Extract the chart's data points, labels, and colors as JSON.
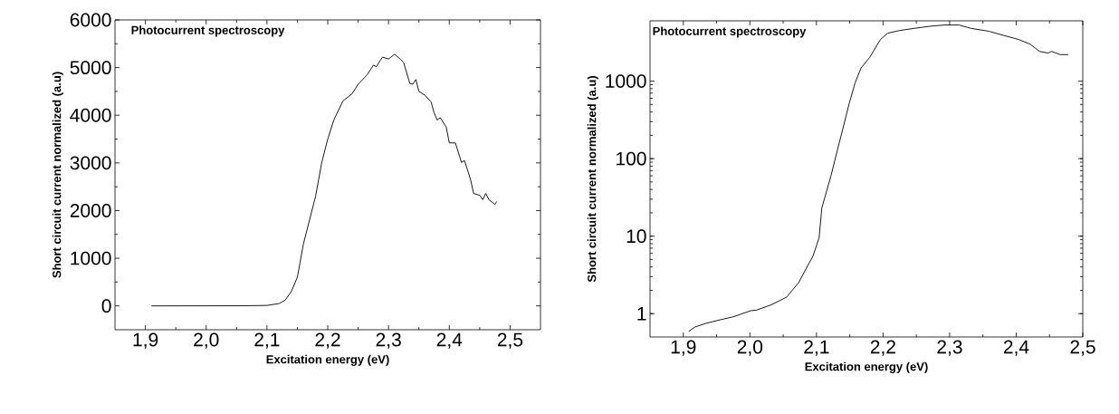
{
  "chart_data": [
    {
      "type": "line",
      "annotations": [
        "Photocurrent spectroscopy"
      ],
      "xlabel": "Excitation energy (eV)",
      "ylabel": "Short circuit current normalized (a.u)",
      "xlim": [
        1.85,
        2.55
      ],
      "ylim": [
        -500,
        6000
      ],
      "xticks": [
        {
          "value": 1.9,
          "label": "1,9"
        },
        {
          "value": 2.0,
          "label": "2,0"
        },
        {
          "value": 2.1,
          "label": "2,1"
        },
        {
          "value": 2.2,
          "label": "2,2"
        },
        {
          "value": 2.3,
          "label": "2,3"
        },
        {
          "value": 2.4,
          "label": "2,4"
        },
        {
          "value": 2.5,
          "label": "2,5"
        }
      ],
      "yticks": [
        0,
        1000,
        2000,
        3000,
        4000,
        5000,
        6000
      ],
      "series": [
        {
          "color": "#000000",
          "x": [
            1.91,
            2.06,
            2.1,
            2.12,
            2.13,
            2.14,
            2.15,
            2.16,
            2.17,
            2.18,
            2.19,
            2.2,
            2.21,
            2.225,
            2.24,
            2.25,
            2.265,
            2.275,
            2.28,
            2.29,
            2.3,
            2.31,
            2.32,
            2.325,
            2.335,
            2.34,
            2.345,
            2.35,
            2.36,
            2.37,
            2.375,
            2.38,
            2.385,
            2.395,
            2.4,
            2.41,
            2.42,
            2.425,
            2.435,
            2.44,
            2.45,
            2.455,
            2.46,
            2.465,
            2.475,
            2.478
          ],
          "values": [
            0,
            3,
            10,
            50,
            120,
            300,
            600,
            1300,
            1800,
            2300,
            3000,
            3500,
            3900,
            4300,
            4450,
            4650,
            4850,
            5050,
            5020,
            5220,
            5180,
            5280,
            5170,
            5100,
            4670,
            4650,
            4750,
            4500,
            4420,
            4280,
            4050,
            3900,
            3950,
            3750,
            3420,
            3420,
            3010,
            3050,
            2650,
            2360,
            2320,
            2230,
            2360,
            2230,
            2130,
            2190
          ]
        }
      ]
    },
    {
      "type": "line",
      "annotations": [
        "Photocurrent spectroscopy"
      ],
      "xlabel": "Excitation energy (eV)",
      "ylabel": "Short circuit current normalized (a.u)",
      "log": "y",
      "xlim": [
        1.85,
        2.5
      ],
      "ylim": [
        0.5,
        6000
      ],
      "xticks": [
        {
          "value": 1.9,
          "label": "1,9"
        },
        {
          "value": 2.0,
          "label": "2,0"
        },
        {
          "value": 2.1,
          "label": "2,1"
        },
        {
          "value": 2.2,
          "label": "2,2"
        },
        {
          "value": 2.3,
          "label": "2,3"
        },
        {
          "value": 2.4,
          "label": "2,4"
        },
        {
          "value": 2.5,
          "label": "2,5"
        }
      ],
      "yticks": [
        1,
        10,
        100,
        1000
      ],
      "series": [
        {
          "color": "#000000",
          "x": [
            1.908,
            1.917,
            1.934,
            1.957,
            1.975,
            2.001,
            2.01,
            2.032,
            2.055,
            2.073,
            2.095,
            2.104,
            2.108,
            2.122,
            2.131,
            2.14,
            2.149,
            2.158,
            2.167,
            2.18,
            2.196,
            2.207,
            2.225,
            2.247,
            2.27,
            2.292,
            2.314,
            2.332,
            2.359,
            2.376,
            2.404,
            2.421,
            2.435,
            2.448,
            2.453,
            2.466,
            2.478
          ],
          "values": [
            0.59,
            0.67,
            0.75,
            0.84,
            0.91,
            1.09,
            1.11,
            1.3,
            1.63,
            2.5,
            5.6,
            9.6,
            23,
            61,
            125,
            250,
            510,
            950,
            1480,
            2030,
            3440,
            4160,
            4500,
            4800,
            5100,
            5300,
            5300,
            4800,
            4400,
            4000,
            3440,
            3000,
            2420,
            2300,
            2420,
            2200,
            2200
          ]
        }
      ]
    }
  ]
}
